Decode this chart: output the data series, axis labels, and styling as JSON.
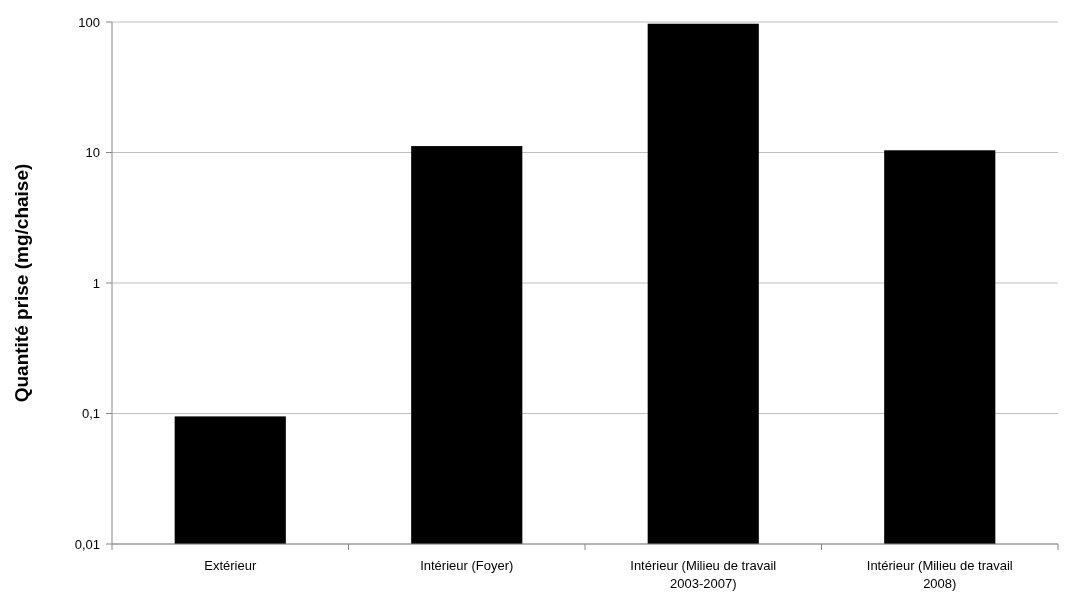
{
  "chart_data": {
    "type": "bar",
    "ylabel": "Quantité prise (mg/chaise)",
    "categories": [
      "Extérieur",
      "Intérieur (Foyer)",
      "Intérieur (Milieu de travail 2003-2007)",
      "Intérieur (Milieu de travail 2008)"
    ],
    "values": [
      0.095,
      11.2,
      97,
      10.4
    ],
    "color": "#000000",
    "log": true,
    "ylim": [
      0.01,
      100
    ],
    "yticks": [
      {
        "value": 0.01,
        "label": "0,01"
      },
      {
        "value": 0.1,
        "label": "0,1"
      },
      1,
      10,
      100
    ],
    "grid": "y"
  }
}
